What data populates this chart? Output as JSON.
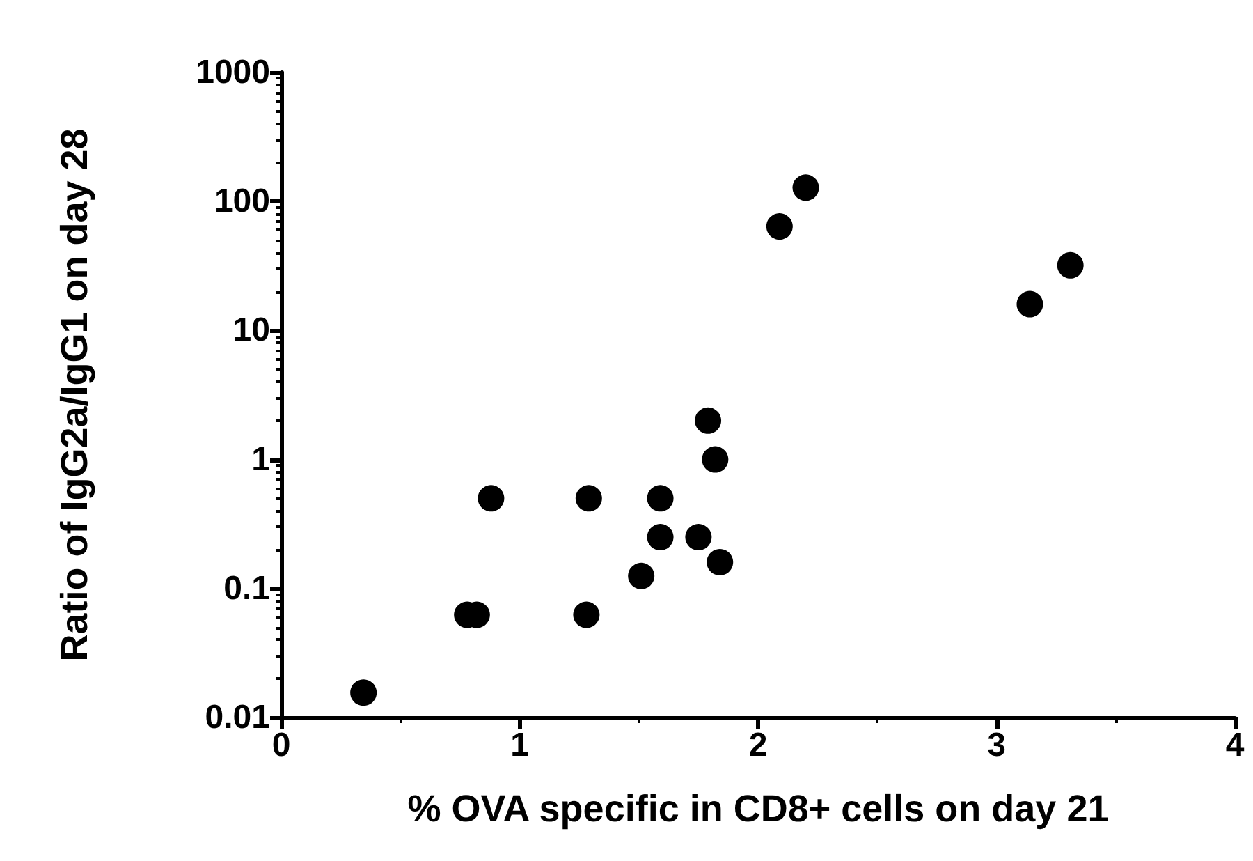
{
  "chart_data": {
    "type": "scatter",
    "xlabel": "% OVA specific in CD8+ cells on day 21",
    "ylabel": "Ratio of IgG2a/IgG1 on day 28",
    "x": [
      0.345,
      0.78,
      0.82,
      0.88,
      1.28,
      1.29,
      1.51,
      1.59,
      1.59,
      1.75,
      1.79,
      1.82,
      1.84,
      2.09,
      2.2,
      3.14,
      3.31
    ],
    "series": [
      {
        "color": "#000000",
        "values": [
          0.0156,
          0.0625,
          0.0625,
          0.5,
          0.0625,
          0.5,
          0.125,
          0.5,
          0.25,
          0.25,
          2,
          1,
          0.16,
          64,
          128,
          16,
          32
        ]
      }
    ],
    "xlim": [
      0,
      4
    ],
    "xticks": [
      0,
      1,
      2,
      3,
      4
    ],
    "ylim": [
      0.01,
      1000
    ],
    "yticks": [
      0.01,
      0.1,
      1,
      10,
      100,
      1000
    ],
    "log": "y",
    "grid": false,
    "marker": "circle"
  }
}
